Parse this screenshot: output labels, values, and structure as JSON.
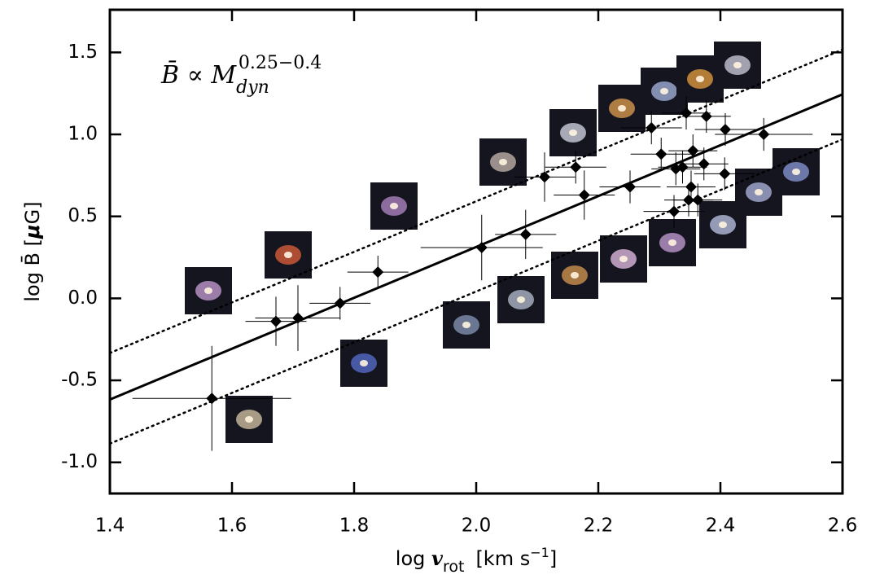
{
  "chart_data": {
    "type": "scatter",
    "annotation": {
      "base": "B̄ ∝ M",
      "sub": "dyn",
      "sup": "0.25−0.4"
    },
    "x_label": {
      "main": "log ",
      "var": "v",
      "sub": "rot",
      "unit": "[km s",
      "exp": "−1",
      "close": "]"
    },
    "y_label": {
      "main": "log B̄ [",
      "mu": "μ",
      "unit": "G]"
    },
    "color": "#000000",
    "xlim": [
      1.4,
      2.6
    ],
    "xticks": [
      1.4,
      1.6,
      1.8,
      {
        "value": 2,
        "label": "2.0"
      },
      2.2,
      2.4,
      2.6
    ],
    "ylim": [
      -1.19,
      1.76
    ],
    "yticks": [
      {
        "value": -1,
        "label": "-1.0"
      },
      -0.5,
      {
        "value": 0,
        "label": "0.0"
      },
      0.5,
      {
        "value": 1,
        "label": "1.0"
      },
      1.5
    ],
    "points": {
      "x": [
        1.567,
        1.672,
        1.708,
        1.777,
        1.839,
        2.009,
        2.081,
        2.112,
        2.163,
        2.177,
        2.252,
        2.287,
        2.303,
        2.324,
        2.327,
        2.338,
        2.344,
        2.348,
        2.352,
        2.355,
        2.363,
        2.373,
        2.377,
        2.408,
        2.407,
        2.471
      ],
      "y": [
        -0.61,
        -0.14,
        -0.12,
        -0.03,
        0.16,
        0.31,
        0.39,
        0.74,
        0.8,
        0.63,
        0.68,
        1.04,
        0.88,
        0.53,
        0.79,
        0.8,
        1.13,
        0.6,
        0.68,
        0.9,
        0.6,
        0.82,
        1.11,
        1.03,
        0.76,
        1.0
      ],
      "xerr": [
        0.13,
        0.05,
        0.07,
        0.05,
        0.05,
        0.1,
        0.05,
        0.05,
        0.05,
        0.05,
        0.05,
        0.05,
        0.05,
        0.05,
        0.04,
        0.04,
        0.04,
        0.04,
        0.04,
        0.04,
        0.04,
        0.04,
        0.04,
        0.05,
        0.05,
        0.08
      ],
      "yerr": [
        0.32,
        0.15,
        0.2,
        0.1,
        0.1,
        0.2,
        0.15,
        0.15,
        0.1,
        0.15,
        0.1,
        0.1,
        0.1,
        0.1,
        0.1,
        0.1,
        0.1,
        0.1,
        0.1,
        0.1,
        0.1,
        0.1,
        0.1,
        0.1,
        0.1,
        0.1
      ]
    },
    "fits": [
      {
        "x": [
          1.4,
          2.6
        ],
        "y": [
          -0.617,
          1.244
        ],
        "style": "solid"
      },
      {
        "x": [
          1.4,
          2.6
        ],
        "y": [
          -0.333,
          1.517
        ],
        "style": "dotted"
      },
      {
        "x": [
          1.4,
          2.6
        ],
        "y": [
          -0.886,
          0.97
        ],
        "style": "dotted"
      }
    ]
  }
}
